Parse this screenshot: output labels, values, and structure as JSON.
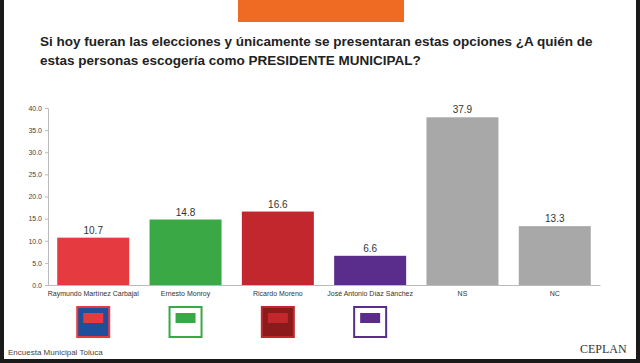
{
  "chart_data": {
    "type": "bar",
    "title": "Si hoy fueran las elecciones y únicamente se presentaran estas opciones ¿A quién de estas personas escogería como PRESIDENTE MUNICIPAL?",
    "categories": [
      "Raymundo Martínez Carbajal",
      "Ernesto Monroy",
      "Ricardo Moreno",
      "José Antonio Díaz Sánchez",
      "NS",
      "NC"
    ],
    "values": [
      10.7,
      14.8,
      16.6,
      6.6,
      37.9,
      13.3
    ],
    "colors": [
      "#e53a3f",
      "#3aa845",
      "#c1272d",
      "#5a2d8c",
      "#a8a8a8",
      "#a8a8a8"
    ],
    "ylim": [
      0,
      40
    ],
    "yticks": [
      {
        "value": 0,
        "label": "0.0"
      },
      {
        "value": 5,
        "label": "5.0"
      },
      {
        "value": 10,
        "label": "10.0"
      },
      {
        "value": 15,
        "label": "15.0"
      },
      {
        "value": 20,
        "label": "20.0"
      },
      {
        "value": 25,
        "label": "25.0"
      },
      {
        "value": 30,
        "label": "30.0"
      },
      {
        "value": 35,
        "label": "35.0"
      },
      {
        "value": 40,
        "label": "40.0"
      }
    ],
    "grid": false,
    "data_labels": true,
    "annotations": [
      "Encuesta Municipal Toluca",
      "CEPLAN"
    ]
  }
}
